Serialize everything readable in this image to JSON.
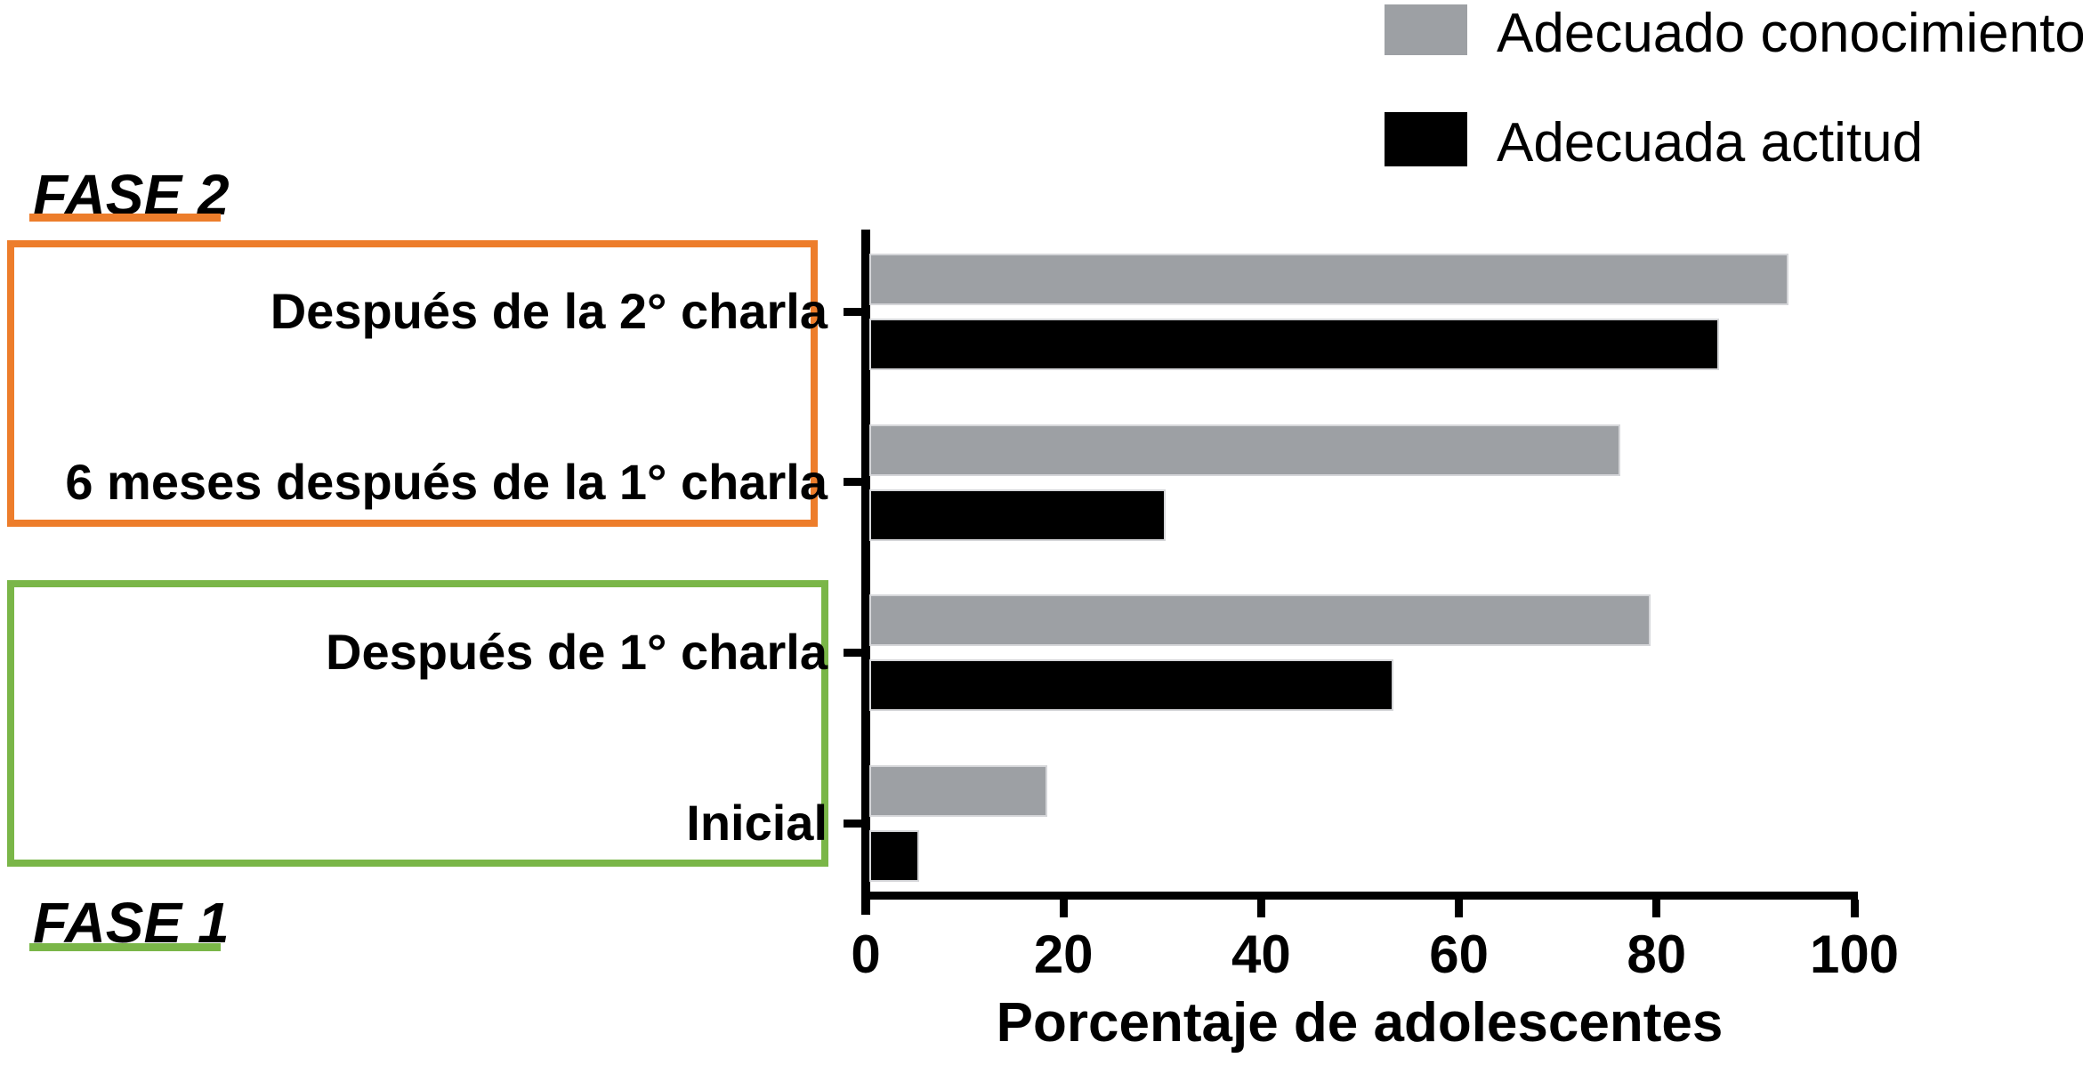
{
  "chart_data": {
    "type": "bar",
    "orientation": "horizontal",
    "title": "",
    "categories": [
      "Después de la 2° charla",
      "6 meses después de la 1° charla",
      "Después de 1° charla",
      "Inicial"
    ],
    "series": [
      {
        "name": "Adecuado conocimiento",
        "color": "#9da0a4",
        "values": [
          93,
          76,
          79,
          18
        ]
      },
      {
        "name": "Adecuada actitud",
        "color": "#000000",
        "values": [
          86,
          30,
          53,
          5
        ]
      }
    ],
    "xlabel": "Porcentaje de adolescentes",
    "ylabel": "",
    "xlim": [
      0,
      100
    ],
    "xticks": [
      0,
      20,
      40,
      60,
      80,
      100
    ],
    "grid": false,
    "legend_position": "top-right",
    "annotations": {
      "fase2": {
        "label": "FASE 2",
        "color": "#ed7d2b",
        "box_categories": [
          "Después de la 2° charla",
          "6 meses después de la 1° charla"
        ]
      },
      "fase1": {
        "label": "FASE 1",
        "color": "#7ab648",
        "box_categories": [
          "Después de 1° charla",
          "Inicial"
        ]
      }
    }
  }
}
